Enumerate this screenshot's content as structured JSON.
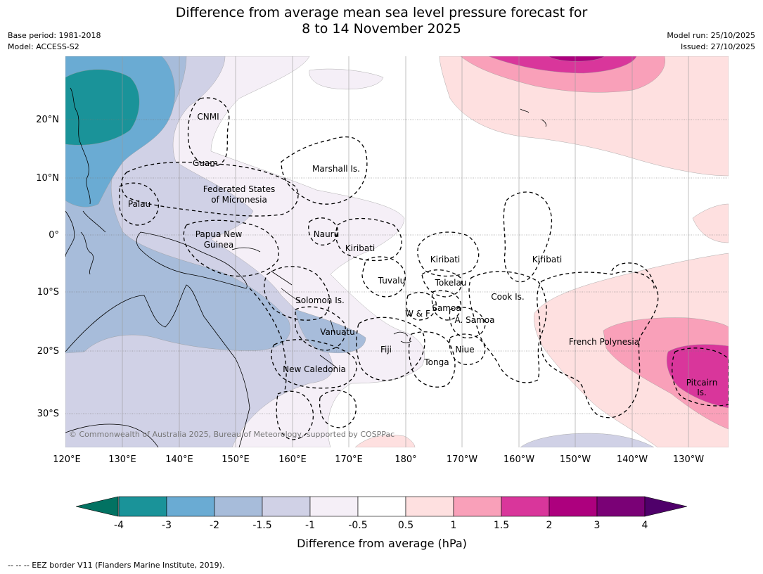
{
  "title_line1": "Difference from average mean sea level pressure forecast for",
  "title_line2": "8 to 14 November 2025",
  "meta_left": [
    "Base period: 1981-2018",
    "Model: ACCESS-S2"
  ],
  "meta_right": [
    "Model run: 25/10/2025",
    "Issued: 27/10/2025"
  ],
  "map": {
    "lon_labels": [
      "120°E",
      "130°E",
      "140°E",
      "150°E",
      "160°E",
      "170°E",
      "180°",
      "170°W",
      "160°W",
      "150°W",
      "140°W",
      "130°W"
    ],
    "lat_labels": [
      "20°N",
      "10°N",
      "0°",
      "10°S",
      "20°S",
      "30°S"
    ],
    "regions": [
      "CNMI",
      "Guam",
      "Marshall Is.",
      "Federated States",
      "of Micronesia",
      "Palau",
      "Nauru",
      "Papua New",
      "Guinea",
      "Kiribati",
      "Kiribati",
      "Kiribati",
      "Tuvalu",
      "Tokelau",
      "Cook Is.",
      "Solomon Is.",
      "W & F",
      "Samoa",
      "A. Samoa",
      "Vanuatu",
      "Fiji",
      "Niue",
      "Tonga",
      "French Polynesia",
      "New Caledonia",
      "Pitcairn",
      "Is."
    ],
    "copyright": "© Commonwealth of Australia 2025, Bureau of Meteorology, supported by COSPPac"
  },
  "colorbar": {
    "ticks": [
      "-4",
      "-3",
      "-2",
      "-1.5",
      "-1",
      "-0.5",
      "0.5",
      "1",
      "1.5",
      "2",
      "3",
      "4"
    ],
    "colors": [
      "#1a9399",
      "#6aabd3",
      "#a7bcda",
      "#d0d1e6",
      "#f5eff7",
      "#ffffff",
      "#fee0e0",
      "#f9a0b9",
      "#d9369b",
      "#ad007e",
      "#7a0176"
    ],
    "low_color": "#027262",
    "high_color": "#4f006a",
    "label": "Difference from average (hPa)"
  },
  "footer": "-- -- -- EEZ border V11 (Flanders Marine Institute, 2019)."
}
